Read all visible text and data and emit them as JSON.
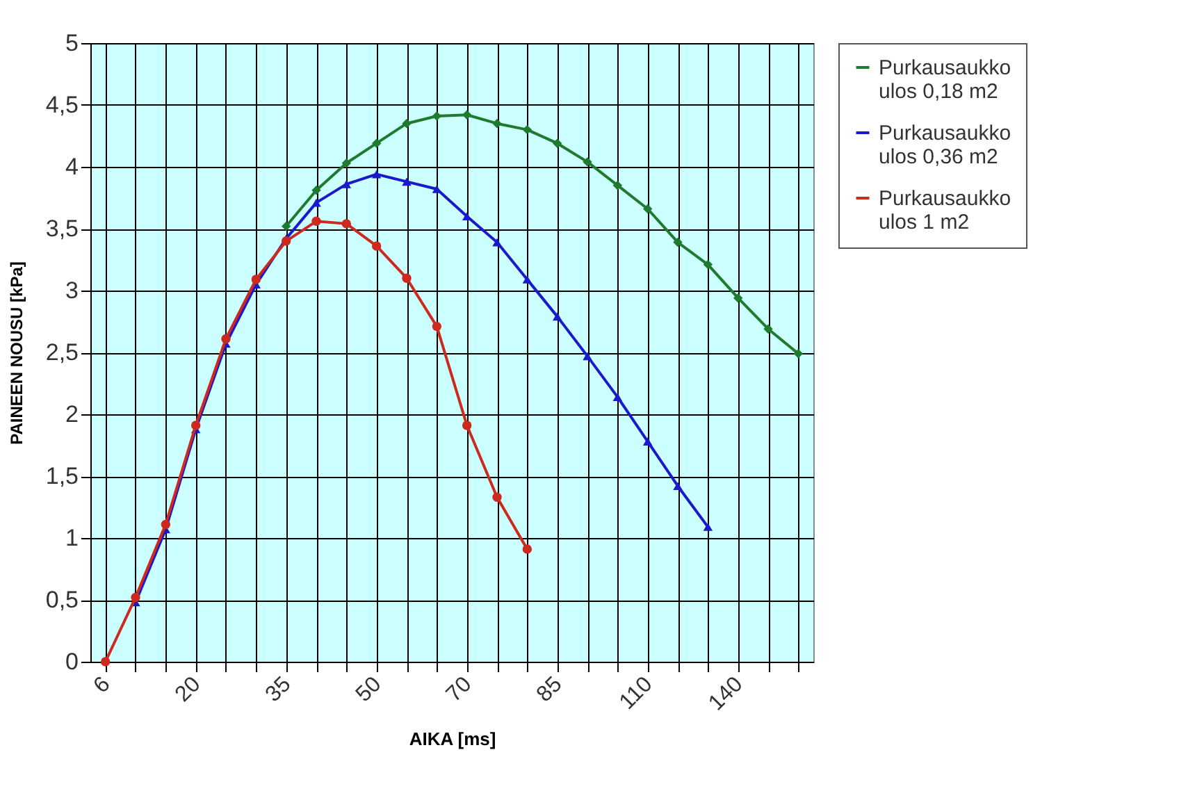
{
  "chart_data": {
    "type": "line",
    "xlabel": "AIKA [ms]",
    "ylabel": "PAINEEN NOUSU  [kPa]",
    "categories": [
      "6",
      null,
      null,
      "20",
      null,
      null,
      "35",
      null,
      null,
      "50",
      null,
      null,
      "70",
      null,
      null,
      "85",
      null,
      null,
      "110",
      null,
      null,
      "140",
      null,
      null
    ],
    "series": [
      {
        "name": "Purkausaukko ulos 0,18 m2",
        "color": "#1e7b2e",
        "marker": "diamond",
        "values": [
          null,
          null,
          null,
          null,
          null,
          null,
          3.52,
          3.81,
          4.03,
          4.19,
          4.35,
          4.41,
          4.42,
          4.35,
          4.3,
          4.19,
          4.04,
          3.85,
          3.66,
          3.39,
          3.21,
          2.94,
          2.69,
          2.49
        ]
      },
      {
        "name": "Purkausaukko ulos 0,36 m2",
        "color": "#1a1acc",
        "marker": "triangle",
        "values": [
          null,
          0.48,
          1.07,
          1.88,
          2.57,
          3.05,
          3.42,
          3.71,
          3.86,
          3.94,
          3.88,
          3.82,
          3.6,
          3.39,
          3.09,
          2.79,
          2.47,
          2.14,
          1.78,
          1.42,
          1.09,
          null,
          null,
          null
        ]
      },
      {
        "name": "Purkausaukko ulos 1 m2",
        "color": "#cc2a1e",
        "marker": "circle",
        "values": [
          0,
          0.52,
          1.11,
          1.91,
          2.61,
          3.09,
          3.4,
          3.56,
          3.54,
          3.36,
          3.1,
          2.71,
          1.91,
          1.33,
          0.91,
          null,
          null,
          null,
          null,
          null,
          null,
          null,
          null,
          null
        ]
      }
    ],
    "ylim": [
      0,
      5
    ],
    "yticks": [
      0,
      {
        "value": 0.5,
        "label": "0,5"
      },
      1,
      {
        "value": 1.5,
        "label": "1,5"
      },
      2,
      {
        "value": 2.5,
        "label": "2,5"
      },
      3,
      {
        "value": 3.5,
        "label": "3,5"
      },
      4,
      {
        "value": 4.5,
        "label": "4,5"
      },
      5
    ],
    "grid": true,
    "legend": "top right"
  }
}
